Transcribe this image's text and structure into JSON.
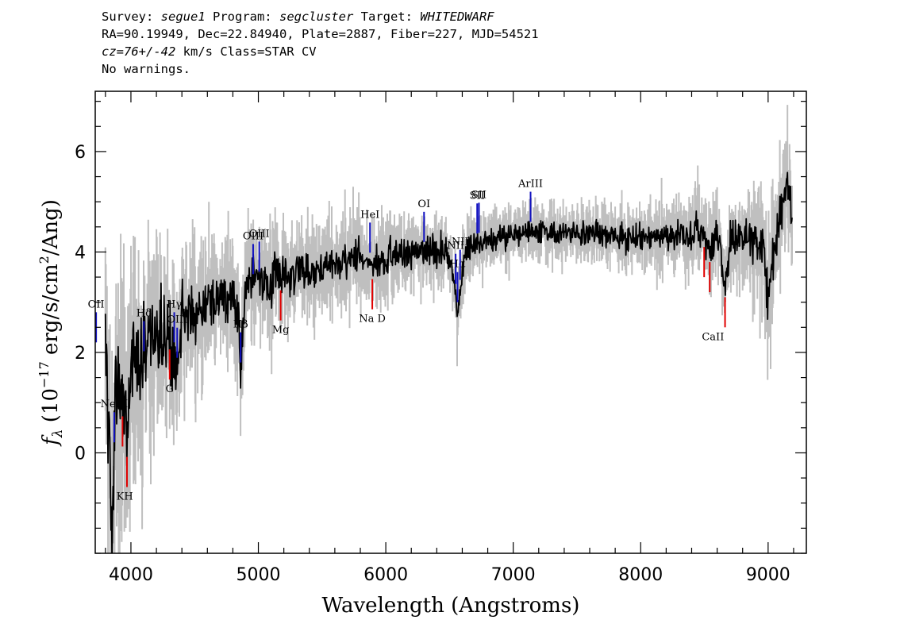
{
  "header": {
    "line1": {
      "survey_label": "Survey: ",
      "survey": "segue1",
      "program_label": " Program: ",
      "program": "segcluster",
      "target_label": " Target: ",
      "target": "WHITEDWARF"
    },
    "line2": "RA=90.19949, Dec=22.84940, Plate=2887, Fiber=227, MJD=54521",
    "line3": {
      "cz": "cz=76+/-42",
      "rest": " km/s Class=STAR CV"
    },
    "line4": "No warnings."
  },
  "chart_data": {
    "type": "line",
    "xlabel": "Wavelength (Angstroms)",
    "ylabel_parts": {
      "f": "f",
      "sub": "λ",
      "open": " (10",
      "exp1": "−17",
      "mid": " erg/s/cm",
      "exp2": "2",
      "close": "/Ang)"
    },
    "xlim": [
      3720,
      9300
    ],
    "ylim": [
      -2,
      7.2
    ],
    "xticks": [
      4000,
      5000,
      6000,
      7000,
      8000,
      9000
    ],
    "yticks": [
      0,
      2,
      4,
      6
    ],
    "x_minor_step": 200,
    "y_minor_step": 0.5,
    "colors": {
      "flux": "#000000",
      "noise": "#bfbfbf",
      "emission": "#1010c0",
      "absorption": "#e00000"
    },
    "flux_keypoints": [
      [
        3800,
        2.0
      ],
      [
        3830,
        0.5
      ],
      [
        3850,
        -1.7
      ],
      [
        3880,
        1.0
      ],
      [
        3920,
        1.4
      ],
      [
        3950,
        0.6
      ],
      [
        3970,
        0.2
      ],
      [
        4000,
        1.6
      ],
      [
        4050,
        1.9
      ],
      [
        4100,
        1.8
      ],
      [
        4150,
        2.4
      ],
      [
        4200,
        2.5
      ],
      [
        4250,
        2.3
      ],
      [
        4300,
        2.4
      ],
      [
        4340,
        2.0
      ],
      [
        4370,
        1.6
      ],
      [
        4400,
        2.7
      ],
      [
        4500,
        2.8
      ],
      [
        4600,
        2.95
      ],
      [
        4700,
        3.0
      ],
      [
        4800,
        3.05
      ],
      [
        4850,
        2.6
      ],
      [
        4861,
        1.6
      ],
      [
        4880,
        2.7
      ],
      [
        4900,
        3.3
      ],
      [
        5000,
        3.4
      ],
      [
        5100,
        3.5
      ],
      [
        5200,
        3.55
      ],
      [
        5300,
        3.55
      ],
      [
        5400,
        3.6
      ],
      [
        5500,
        3.75
      ],
      [
        5600,
        3.8
      ],
      [
        5700,
        3.85
      ],
      [
        5800,
        3.9
      ],
      [
        5900,
        3.75
      ],
      [
        6000,
        3.95
      ],
      [
        6100,
        4.0
      ],
      [
        6200,
        4.05
      ],
      [
        6300,
        4.0
      ],
      [
        6400,
        4.05
      ],
      [
        6480,
        3.95
      ],
      [
        6530,
        3.6
      ],
      [
        6563,
        2.8
      ],
      [
        6590,
        3.4
      ],
      [
        6620,
        4.0
      ],
      [
        6700,
        4.15
      ],
      [
        6800,
        4.25
      ],
      [
        6900,
        4.3
      ],
      [
        7000,
        4.35
      ],
      [
        7100,
        4.4
      ],
      [
        7200,
        4.4
      ],
      [
        7400,
        4.4
      ],
      [
        7600,
        4.4
      ],
      [
        7800,
        4.3
      ],
      [
        8000,
        4.3
      ],
      [
        8200,
        4.3
      ],
      [
        8400,
        4.35
      ],
      [
        8500,
        4.4
      ],
      [
        8542,
        4.1
      ],
      [
        8600,
        4.4
      ],
      [
        8662,
        3.4
      ],
      [
        8700,
        4.2
      ],
      [
        8800,
        4.3
      ],
      [
        8900,
        4.25
      ],
      [
        8960,
        4.1
      ],
      [
        9000,
        3.0
      ],
      [
        9030,
        3.8
      ],
      [
        9080,
        4.6
      ],
      [
        9150,
        5.4
      ],
      [
        9190,
        4.8
      ]
    ],
    "noise_keypoints": [
      [
        3800,
        2.2
      ],
      [
        4000,
        1.6
      ],
      [
        4300,
        1.1
      ],
      [
        4700,
        0.8
      ],
      [
        5200,
        0.7
      ],
      [
        6000,
        0.5
      ],
      [
        7000,
        0.35
      ],
      [
        8000,
        0.35
      ],
      [
        8500,
        0.5
      ],
      [
        9000,
        0.8
      ],
      [
        9190,
        0.9
      ]
    ],
    "emission_lines": [
      {
        "label": "OII",
        "x": 3727
      },
      {
        "label": "NeIII",
        "x": 3869
      },
      {
        "label": "Hδ",
        "x": 4102
      },
      {
        "label": "Hγ",
        "x": 4340
      },
      {
        "label": "OIII",
        "x": 4363
      },
      {
        "label": "Hβ",
        "x": 4861
      },
      {
        "label": "OIII",
        "x": 4959
      },
      {
        "label": "OIII",
        "x": 5007
      },
      {
        "label": "HeI",
        "x": 5876
      },
      {
        "label": "OI",
        "x": 6300
      },
      {
        "label": "NII",
        "x": 6548
      },
      {
        "label": "Hα",
        "x": 6563
      },
      {
        "label": "NII",
        "x": 6583
      },
      {
        "label": "SII",
        "x": 6717
      },
      {
        "label": "SII",
        "x": 6731
      },
      {
        "label": "ArIII",
        "x": 7136
      }
    ],
    "absorption_lines": [
      {
        "label": "KH",
        "x": [
          3934,
          3969
        ]
      },
      {
        "label": "G",
        "x": [
          4304
        ]
      },
      {
        "label": "Mg",
        "x": [
          5175
        ]
      },
      {
        "label": "Na D",
        "x": [
          5894
        ]
      },
      {
        "label": "CaII",
        "x": [
          8498,
          8542,
          8662
        ]
      }
    ]
  }
}
